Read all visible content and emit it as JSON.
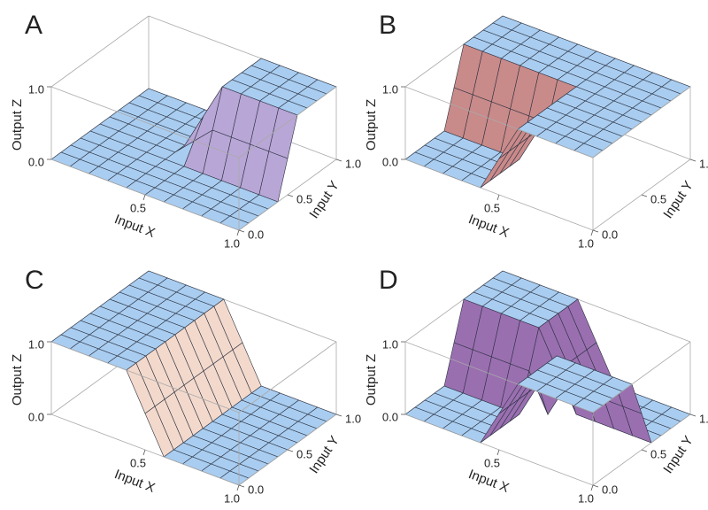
{
  "chart_data": [
    {
      "type": "surface",
      "title": "A",
      "xlabel": "Input X",
      "ylabel": "Input Y",
      "zlabel": "Output Z",
      "x": [
        0,
        0.1,
        0.2,
        0.3,
        0.4,
        0.5,
        0.6,
        0.7,
        0.8,
        0.9,
        1
      ],
      "y": [
        0,
        0.1,
        0.2,
        0.3,
        0.4,
        0.5,
        0.6,
        0.7,
        0.8,
        0.9,
        1
      ],
      "z": [
        [
          0,
          0,
          0,
          0,
          0,
          0,
          0,
          0,
          0,
          0,
          0
        ],
        [
          0,
          0,
          0,
          0,
          0,
          0,
          0,
          0,
          0,
          0,
          0
        ],
        [
          0,
          0,
          0,
          0,
          0,
          0,
          0,
          0,
          0,
          0,
          0
        ],
        [
          0,
          0,
          0,
          0,
          0,
          0,
          0,
          0,
          0,
          0,
          0
        ],
        [
          0,
          0,
          0,
          0,
          0,
          0,
          0,
          0,
          0,
          0,
          0
        ],
        [
          0,
          0,
          0,
          0,
          0,
          0.25,
          0.5,
          0.5,
          0.5,
          0.5,
          0.5
        ],
        [
          0,
          0,
          0,
          0,
          0,
          0.5,
          1,
          1,
          1,
          1,
          1
        ],
        [
          0,
          0,
          0,
          0,
          0,
          0.5,
          1,
          1,
          1,
          1,
          1
        ],
        [
          0,
          0,
          0,
          0,
          0,
          0.5,
          1,
          1,
          1,
          1,
          1
        ],
        [
          0,
          0,
          0,
          0,
          0,
          0.5,
          1,
          1,
          1,
          1,
          1
        ],
        [
          0,
          0,
          0,
          0,
          0,
          0.5,
          1,
          1,
          1,
          1,
          1
        ]
      ],
      "xlim": [
        0,
        1
      ],
      "ylim": [
        0,
        1
      ],
      "zlim": [
        0,
        1
      ],
      "xticks": [
        {
          "value": 0.5,
          "label": "0.5"
        },
        {
          "value": 1,
          "label": "1.0"
        }
      ],
      "yticks": [
        {
          "value": 0,
          "label": "0.0"
        },
        {
          "value": 0.5,
          "label": "0.5"
        },
        {
          "value": 1,
          "label": "1.0"
        }
      ],
      "zticks": [
        {
          "value": 0,
          "label": "0.0"
        },
        {
          "value": 1,
          "label": "1.0"
        }
      ],
      "color": "#a9cdf0",
      "wall_color": "#b8a6d6"
    },
    {
      "type": "surface",
      "title": "B",
      "xlabel": "Input X",
      "ylabel": "Input Y",
      "zlabel": "Output Z",
      "x": [
        0,
        0.1,
        0.2,
        0.3,
        0.4,
        0.5,
        0.6,
        0.7,
        0.8,
        0.9,
        1
      ],
      "y": [
        0,
        0.1,
        0.2,
        0.3,
        0.4,
        0.5,
        0.6,
        0.7,
        0.8,
        0.9,
        1
      ],
      "z": [
        [
          0,
          0,
          0,
          0,
          0,
          0.5,
          1,
          1,
          1,
          1,
          1
        ],
        [
          0,
          0,
          0,
          0,
          0,
          0.5,
          1,
          1,
          1,
          1,
          1
        ],
        [
          0,
          0,
          0,
          0,
          0,
          0.5,
          1,
          1,
          1,
          1,
          1
        ],
        [
          0,
          0,
          0,
          0,
          0,
          0.5,
          1,
          1,
          1,
          1,
          1
        ],
        [
          0,
          0,
          0,
          0,
          0,
          0.5,
          1,
          1,
          1,
          1,
          1
        ],
        [
          0.5,
          0.5,
          0.5,
          0.5,
          0.5,
          0.5,
          1,
          1,
          1,
          1,
          1
        ],
        [
          1,
          1,
          1,
          1,
          1,
          1,
          1,
          1,
          1,
          1,
          1
        ],
        [
          1,
          1,
          1,
          1,
          1,
          1,
          1,
          1,
          1,
          1,
          1
        ],
        [
          1,
          1,
          1,
          1,
          1,
          1,
          1,
          1,
          1,
          1,
          1
        ],
        [
          1,
          1,
          1,
          1,
          1,
          1,
          1,
          1,
          1,
          1,
          1
        ],
        [
          1,
          1,
          1,
          1,
          1,
          1,
          1,
          1,
          1,
          1,
          1
        ]
      ],
      "xlim": [
        0,
        1
      ],
      "ylim": [
        0,
        1
      ],
      "zlim": [
        0,
        1
      ],
      "xticks": [
        {
          "value": 0.5,
          "label": "0.5"
        },
        {
          "value": 1,
          "label": "1.0"
        }
      ],
      "yticks": [
        {
          "value": 0,
          "label": "0.0"
        },
        {
          "value": 0.5,
          "label": "0.5"
        },
        {
          "value": 1,
          "label": "1.0"
        }
      ],
      "zticks": [
        {
          "value": 0,
          "label": "0.0"
        },
        {
          "value": 1,
          "label": "1.0"
        }
      ],
      "color": "#a9cdf0",
      "wall_color": "#c98a8a"
    },
    {
      "type": "surface",
      "title": "C",
      "xlabel": "Input X",
      "ylabel": "Input Y",
      "zlabel": "Output Z",
      "x": [
        0,
        0.1,
        0.2,
        0.3,
        0.4,
        0.5,
        0.6,
        0.7,
        0.8,
        0.9,
        1
      ],
      "y": [
        0,
        0.1,
        0.2,
        0.3,
        0.4,
        0.5,
        0.6,
        0.7,
        0.8,
        0.9,
        1
      ],
      "z": [
        [
          1,
          1,
          1,
          1,
          1,
          0.5,
          0,
          0,
          0,
          0,
          0
        ],
        [
          1,
          1,
          1,
          1,
          1,
          0.5,
          0,
          0,
          0,
          0,
          0
        ],
        [
          1,
          1,
          1,
          1,
          1,
          0.5,
          0,
          0,
          0,
          0,
          0
        ],
        [
          1,
          1,
          1,
          1,
          1,
          0.5,
          0,
          0,
          0,
          0,
          0
        ],
        [
          1,
          1,
          1,
          1,
          1,
          0.5,
          0,
          0,
          0,
          0,
          0
        ],
        [
          1,
          1,
          1,
          1,
          1,
          0.5,
          0,
          0,
          0,
          0,
          0
        ],
        [
          1,
          1,
          1,
          1,
          1,
          0.5,
          0,
          0,
          0,
          0,
          0
        ],
        [
          1,
          1,
          1,
          1,
          1,
          0.5,
          0,
          0,
          0,
          0,
          0
        ],
        [
          1,
          1,
          1,
          1,
          1,
          0.5,
          0,
          0,
          0,
          0,
          0
        ],
        [
          1,
          1,
          1,
          1,
          1,
          0.5,
          0,
          0,
          0,
          0,
          0
        ],
        [
          1,
          1,
          1,
          1,
          1,
          0.5,
          0,
          0,
          0,
          0,
          0
        ]
      ],
      "xlim": [
        0,
        1
      ],
      "ylim": [
        0,
        1
      ],
      "zlim": [
        0,
        1
      ],
      "xticks": [
        {
          "value": 0.5,
          "label": "0.5"
        },
        {
          "value": 1,
          "label": "1.0"
        }
      ],
      "yticks": [
        {
          "value": 0,
          "label": "0.0"
        },
        {
          "value": 0.5,
          "label": "0.5"
        },
        {
          "value": 1,
          "label": "1.0"
        }
      ],
      "zticks": [
        {
          "value": 0,
          "label": "0.0"
        },
        {
          "value": 1,
          "label": "1.0"
        }
      ],
      "color": "#a9cdf0",
      "wall_color": "#f3d9cc"
    },
    {
      "type": "surface",
      "title": "D",
      "xlabel": "Input X",
      "ylabel": "Input Y",
      "zlabel": "Output Z",
      "x": [
        0,
        0.1,
        0.2,
        0.3,
        0.4,
        0.5,
        0.6,
        0.7,
        0.8,
        0.9,
        1
      ],
      "y": [
        0,
        0.1,
        0.2,
        0.3,
        0.4,
        0.5,
        0.6,
        0.7,
        0.8,
        0.9,
        1
      ],
      "z": [
        [
          0,
          0,
          0,
          0,
          0,
          0.5,
          1,
          1,
          1,
          1,
          1
        ],
        [
          0,
          0,
          0,
          0,
          0,
          0.5,
          1,
          1,
          1,
          1,
          1
        ],
        [
          0,
          0,
          0,
          0,
          0,
          0.5,
          1,
          1,
          1,
          1,
          1
        ],
        [
          0,
          0,
          0,
          0,
          0,
          0.5,
          1,
          1,
          1,
          1,
          1
        ],
        [
          0,
          0,
          0,
          0,
          0,
          0.5,
          1,
          1,
          1,
          1,
          1
        ],
        [
          0.5,
          0.5,
          0.5,
          0.5,
          0.5,
          0,
          0.5,
          0.5,
          0.5,
          0.5,
          0.5
        ],
        [
          1,
          1,
          1,
          1,
          1,
          0.5,
          0,
          0,
          0,
          0,
          0
        ],
        [
          1,
          1,
          1,
          1,
          1,
          0.5,
          0,
          0,
          0,
          0,
          0
        ],
        [
          1,
          1,
          1,
          1,
          1,
          0.5,
          0,
          0,
          0,
          0,
          0
        ],
        [
          1,
          1,
          1,
          1,
          1,
          0.5,
          0,
          0,
          0,
          0,
          0
        ],
        [
          1,
          1,
          1,
          1,
          1,
          0.5,
          0,
          0,
          0,
          0,
          0
        ]
      ],
      "xlim": [
        0,
        1
      ],
      "ylim": [
        0,
        1
      ],
      "zlim": [
        0,
        1
      ],
      "xticks": [
        {
          "value": 0.5,
          "label": "0.5"
        },
        {
          "value": 1,
          "label": "1.0"
        }
      ],
      "yticks": [
        {
          "value": 0,
          "label": "0.0"
        },
        {
          "value": 0.5,
          "label": "0.5"
        },
        {
          "value": 1,
          "label": "1.0"
        }
      ],
      "zticks": [
        {
          "value": 0,
          "label": "0.0"
        },
        {
          "value": 1,
          "label": "1.0"
        }
      ],
      "color": "#a9cdf0",
      "wall_color": "#9a6fb0"
    }
  ]
}
